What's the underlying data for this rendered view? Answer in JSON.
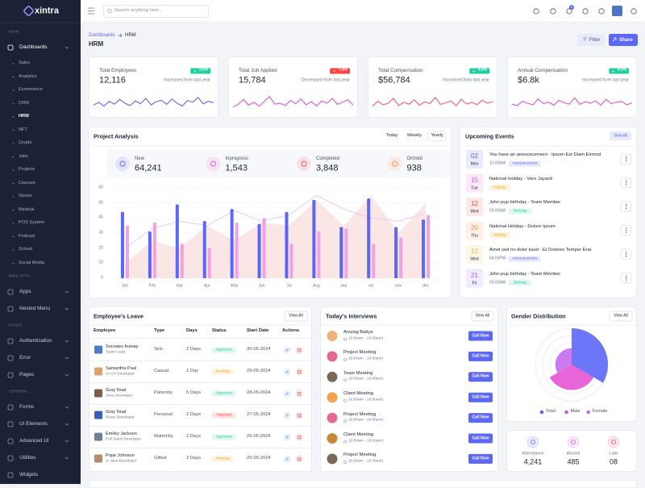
{
  "brand": "xintra",
  "header": {
    "search_placeholder": "Search anything here...",
    "cart_badge": "5"
  },
  "sidebar": {
    "sections": [
      {
        "label": "MAIN",
        "items": [
          {
            "label": "Dashboards",
            "expanded": true,
            "children": [
              {
                "label": "Sales"
              },
              {
                "label": "Analytics"
              },
              {
                "label": "Ecommerce"
              },
              {
                "label": "CRM"
              },
              {
                "label": "HRM",
                "active": true
              },
              {
                "label": "NFT"
              },
              {
                "label": "Crypto"
              },
              {
                "label": "Jobs"
              },
              {
                "label": "Projects"
              },
              {
                "label": "Courses"
              },
              {
                "label": "Stocks"
              },
              {
                "label": "Medical"
              },
              {
                "label": "POS System"
              },
              {
                "label": "Podcast"
              },
              {
                "label": "School"
              },
              {
                "label": "Social Media"
              }
            ]
          }
        ]
      },
      {
        "label": "WEB APPS",
        "items": [
          {
            "label": "Apps"
          },
          {
            "label": "Nested Menu"
          }
        ]
      },
      {
        "label": "PAGES",
        "items": [
          {
            "label": "Authentication"
          },
          {
            "label": "Error"
          },
          {
            "label": "Pages"
          }
        ]
      },
      {
        "label": "GENERAL",
        "items": [
          {
            "label": "Forms"
          },
          {
            "label": "UI Elements"
          },
          {
            "label": "Advanced UI"
          },
          {
            "label": "Utilities"
          },
          {
            "label": "Widgets",
            "submenu": false
          }
        ]
      }
    ]
  },
  "page": {
    "breadcrumb": [
      "Dashboards",
      "HRM"
    ],
    "title": "HRM",
    "filter": "Filter",
    "share": "Share"
  },
  "trend_ylim": [
    0,
    100
  ],
  "stat_cards": [
    {
      "title": "Total Employees",
      "value": "12,116",
      "change": "2.5%",
      "direction": "up",
      "note": "Increased from last year",
      "color": "#5c67f7",
      "trend": [
        40,
        55,
        35,
        60,
        45,
        70,
        50,
        38,
        62,
        48,
        75,
        42,
        58,
        66,
        44,
        72,
        50,
        36,
        64,
        55,
        80,
        47,
        60,
        52
      ]
    },
    {
      "title": "Total Job Applied",
      "value": "15,784",
      "change": "1.8%",
      "direction": "down",
      "note": "Decreased from last year",
      "color": "#e354d4",
      "trend": [
        30,
        45,
        70,
        40,
        55,
        35,
        60,
        85,
        45,
        50,
        38,
        65,
        48,
        72,
        42,
        58,
        36,
        62,
        50,
        75,
        44,
        56,
        68,
        40
      ]
    },
    {
      "title": "Total Compensation",
      "value": "$56,784",
      "change": "6.0%",
      "direction": "up",
      "note": "Increased from last year",
      "color": "#fb5a6e",
      "trend": [
        35,
        60,
        42,
        50,
        75,
        38,
        55,
        45,
        68,
        40,
        58,
        48,
        80,
        44,
        52,
        62,
        38,
        70,
        46,
        55,
        42,
        66,
        50,
        58
      ]
    },
    {
      "title": "Annual Compensation",
      "value": "$6.8k",
      "change": "6.0%",
      "direction": "up",
      "note": "Increased from last year",
      "color": "#e354d4",
      "trend": [
        45,
        38,
        60,
        50,
        42,
        72,
        48,
        56,
        40,
        65,
        52,
        46,
        78,
        44,
        58,
        50,
        62,
        40,
        70,
        48,
        55,
        60,
        42,
        52
      ]
    }
  ],
  "project_analysis": {
    "title": "Project Analysis",
    "tabs": [
      "Today",
      "Weekly",
      "Yearly"
    ],
    "active_tab": 2,
    "stats": [
      {
        "label": "New",
        "value": "64,241",
        "color": "#5c67f7"
      },
      {
        "label": "Inprogress",
        "value": "1,543",
        "color": "#e354d4"
      },
      {
        "label": "Completed",
        "value": "3,848",
        "color": "#fb4d6b"
      },
      {
        "label": "Onhold",
        "value": "938",
        "color": "#ff8e4f"
      }
    ],
    "chart": {
      "type": "bar",
      "categories": [
        "Jan",
        "Feb",
        "mar",
        "Apr",
        "May",
        "Jun",
        "Jul",
        "Aug",
        "sep",
        "oct",
        "nov",
        "dec"
      ],
      "ylim": [
        0,
        60
      ],
      "yticks": [
        0,
        10,
        20,
        30,
        40,
        50,
        60
      ],
      "grid": true,
      "series": [
        {
          "kind": "area",
          "color": "#f9dcdc",
          "values": [
            10,
            25,
            20,
            35,
            25,
            37,
            35,
            52,
            35,
            55,
            30,
            50
          ]
        },
        {
          "kind": "line",
          "color": "#ecc9ef",
          "values": [
            20,
            33,
            38,
            35,
            45,
            38,
            42,
            55,
            46,
            40,
            38,
            43
          ]
        },
        {
          "kind": "bar",
          "color": "#5c67f7",
          "values": [
            44,
            31,
            49,
            38,
            46,
            36,
            44,
            52,
            34,
            53,
            34,
            39
          ]
        },
        {
          "kind": "bar",
          "color": "#f0a2e6",
          "values": [
            35,
            37,
            23,
            20,
            37,
            40,
            23,
            31,
            33,
            23,
            27,
            42
          ]
        }
      ]
    }
  },
  "events": {
    "title": "Upcoming Events",
    "view_all": "View All",
    "items": [
      {
        "day": "02",
        "weekday": "Mon",
        "text": "You have an announcement - Ipsum Est Diam Eirmod",
        "time": "10:00AM",
        "tag": "Announcement",
        "color": "#5c67f7",
        "tag_color": "#5c67f7"
      },
      {
        "day": "15",
        "weekday": "Tue",
        "text": "National holiday - Vero Jayanti",
        "tag": "Holiday",
        "color": "#e354d4",
        "tag_color": "#f5a623"
      },
      {
        "day": "12",
        "weekday": "Wed",
        "text": "John pup birthday - Team Member",
        "time": "09:00AM",
        "tag": "Birthday",
        "color": "#fb4242",
        "tag_color": "#21ce9e"
      },
      {
        "day": "20",
        "weekday": "Thu",
        "text": "National Holiday - Dolore Ipsum",
        "tag": "Holiday",
        "color": "#ff8e33",
        "tag_color": "#f5a623"
      },
      {
        "day": "12",
        "weekday": "Wed",
        "text": "Amet sed no dolor kasd - Et Dolores Tempor Erat",
        "time": "04:00PM",
        "tag": "Announcement",
        "color": "#f5b849",
        "tag_color": "#5c67f7"
      },
      {
        "day": "21",
        "weekday": "Fri",
        "text": "John pup birthday - Team Member",
        "time": "09:00AM",
        "tag": "Birthday",
        "color": "#9e5cf7",
        "tag_color": "#21ce9e"
      }
    ]
  },
  "leave": {
    "title": "Employee's Leave",
    "view_all": "View All",
    "columns": [
      "Employee",
      "Type",
      "Days",
      "Status",
      "Start Date",
      "Actions"
    ],
    "rows": [
      {
        "name": "Socrates Itumay",
        "role": "Team Lead",
        "type": "Sick",
        "days": "2 Days",
        "status": "Approved",
        "status_color": "#21ce9e",
        "date": "30-05-2024"
      },
      {
        "name": "Samantha Paul",
        "role": "UI UX Developer",
        "type": "Casual",
        "days": "1 Day",
        "status": "Pending",
        "status_color": "#f5a623",
        "date": "29-05-2024"
      },
      {
        "name": "Gray Noal",
        "role": "Java Developer",
        "type": "Paternity",
        "days": "5 Days",
        "status": "Approved",
        "status_color": "#21ce9e",
        "date": "28-05-2024"
      },
      {
        "name": "Gray Noal",
        "role": "React Developer",
        "type": "Personal",
        "days": "2 Days",
        "status": "Rejected",
        "status_color": "#fb4242",
        "date": "27-05-2024"
      },
      {
        "name": "Emiley Jackson",
        "role": "Full Stack Developer",
        "type": "Maternity",
        "days": "2 Days",
        "status": "Approved",
        "status_color": "#21ce9e",
        "date": "26-05-2024"
      },
      {
        "name": "Pope Johnson",
        "role": "Jr Java Developer",
        "type": "Gifted",
        "days": "2 Days",
        "status": "Pending",
        "status_color": "#f5a623",
        "date": "25-05-2024"
      }
    ]
  },
  "interviews": {
    "title": "Today's Interviews",
    "view_all": "View All",
    "button": "Call Now",
    "items": [
      {
        "title": "Anurag Batiya",
        "time": "10:00am - 10:00am)"
      },
      {
        "title": "Project Meeting",
        "time": "10:00am - 10:00am)"
      },
      {
        "title": "Team Meeting",
        "time": "10:00am - 10:00am)"
      },
      {
        "title": "Client Meeting",
        "time": "10:00am - 10:00am)"
      },
      {
        "title": "Project Meeting",
        "time": "10:00am - 10:00am)"
      },
      {
        "title": "Client Meeting",
        "time": "10:00am - 10:00am)"
      },
      {
        "title": "Project Meeting",
        "time": "10:00am - 10:00am)"
      }
    ]
  },
  "gender": {
    "title": "Gender Distribution",
    "view_all": "View All",
    "chart": {
      "type": "polar",
      "categories": [
        "Total",
        "Male",
        "Female"
      ],
      "values": [
        100,
        70,
        45
      ],
      "colors": [
        "#5c67f7",
        "#e354d4",
        "#c56cf0"
      ],
      "rlim": [
        0,
        100
      ],
      "rticks": [
        20,
        40,
        60,
        80,
        100
      ]
    }
  },
  "attendance": [
    {
      "label": "Attendance",
      "value": "4,241",
      "color": "#5c67f7"
    },
    {
      "label": "Absent",
      "value": "485",
      "color": "#e354d4"
    },
    {
      "label": "Late",
      "value": "08",
      "color": "#fb4d6b"
    }
  ]
}
